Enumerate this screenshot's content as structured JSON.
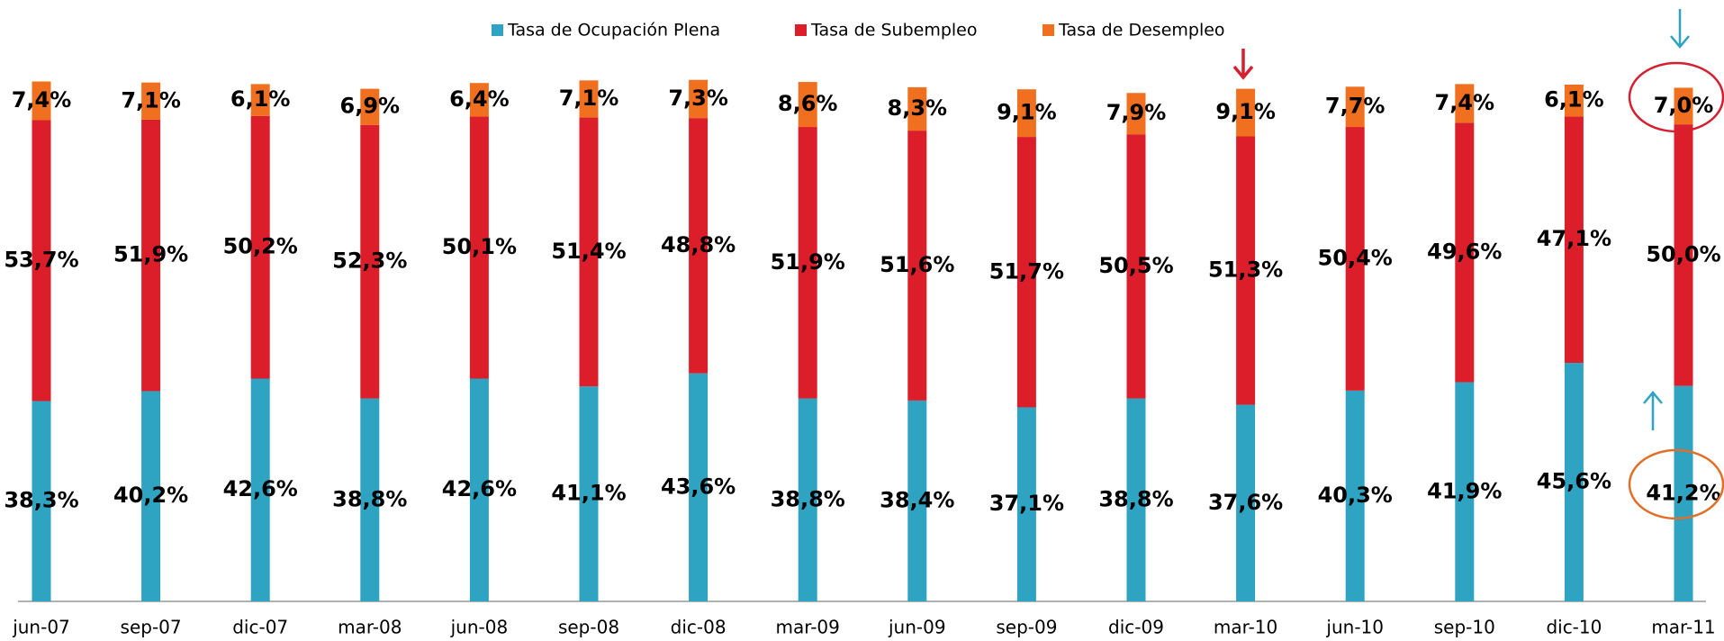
{
  "chart_data": {
    "type": "stacked_bar",
    "categories": [
      "jun-07",
      "sep-07",
      "dic-07",
      "mar-08",
      "jun-08",
      "sep-08",
      "dic-08",
      "mar-09",
      "jun-09",
      "sep-09",
      "dic-09",
      "mar-10",
      "jun-10",
      "sep-10",
      "dic-10",
      "mar-11"
    ],
    "ylim": [
      0,
      100
    ],
    "legend": "top",
    "series": [
      {
        "name": "Tasa de Ocupación Plena",
        "color": "#2ea3c2",
        "values": [
          38.3,
          40.2,
          42.6,
          38.8,
          42.6,
          41.1,
          43.6,
          38.8,
          38.4,
          37.1,
          38.8,
          37.6,
          40.3,
          41.9,
          45.6,
          41.2
        ],
        "value_labels": [
          "38,3%",
          "40,2%",
          "42,6%",
          "38,8%",
          "42,6%",
          "41,1%",
          "43,6%",
          "38,8%",
          "38,4%",
          "37,1%",
          "38,8%",
          "37,6%",
          "40,3%",
          "41,9%",
          "45,6%",
          "41,2%"
        ]
      },
      {
        "name": "Tasa de Subempleo",
        "color": "#dc1e2a",
        "values": [
          53.7,
          51.9,
          50.2,
          52.3,
          50.1,
          51.4,
          48.8,
          51.9,
          51.6,
          51.7,
          50.5,
          51.3,
          50.4,
          49.6,
          47.1,
          50.0
        ],
        "value_labels": [
          "53,7%",
          "51,9%",
          "50,2%",
          "52,3%",
          "50,1%",
          "51,4%",
          "48,8%",
          "51,9%",
          "51,6%",
          "51,7%",
          "50,5%",
          "51,3%",
          "50,4%",
          "49,6%",
          "47,1%",
          "50,0%"
        ]
      },
      {
        "name": "Tasa de Desempleo",
        "color": "#f07020",
        "values": [
          7.4,
          7.1,
          6.1,
          6.9,
          6.4,
          7.1,
          7.3,
          8.6,
          8.3,
          9.1,
          7.9,
          9.1,
          7.7,
          7.4,
          6.1,
          7.0
        ],
        "value_labels": [
          "7,4%",
          "7,1%",
          "6,1%",
          "6,9%",
          "6,4%",
          "7,1%",
          "7,3%",
          "8,6%",
          "8,3%",
          "9,1%",
          "7,9%",
          "9,1%",
          "7,7%",
          "7,4%",
          "6,1%",
          "7,0%"
        ]
      }
    ]
  }
}
